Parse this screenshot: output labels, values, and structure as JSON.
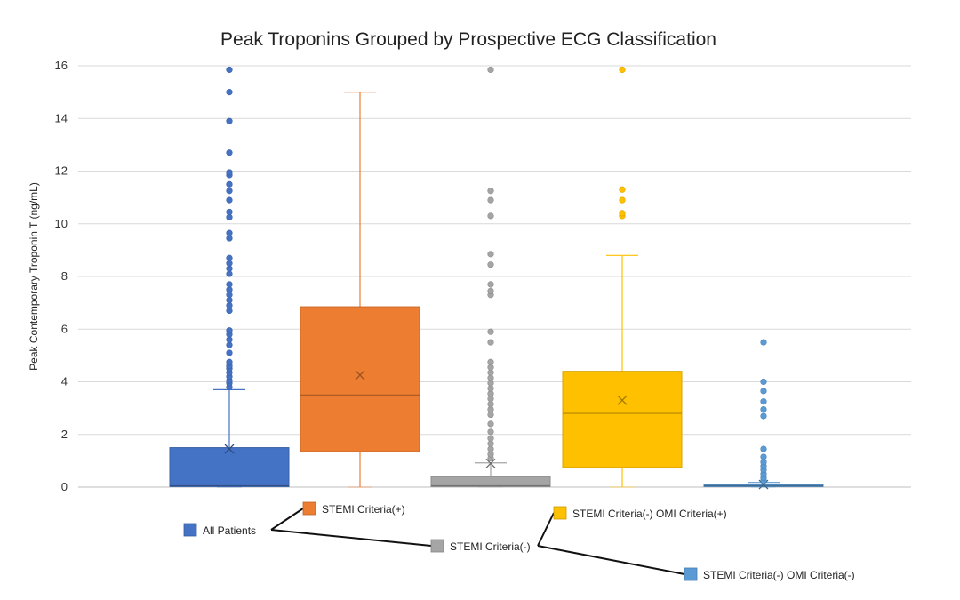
{
  "chart_data": {
    "type": "box",
    "title": "Peak Troponins Grouped by Prospective ECG Classification",
    "ylabel": "Peak Contemporary Troponin T (ng/mL)",
    "xlabel": "",
    "ylim": [
      0,
      16
    ],
    "yticks": [
      0,
      2,
      4,
      6,
      8,
      10,
      12,
      14,
      16
    ],
    "grid": true,
    "legend_position": "bottom",
    "series": [
      {
        "name": "All Patients",
        "color": "#4472C4",
        "min": 0.0,
        "q1": 0.02,
        "median": 0.05,
        "q3": 1.5,
        "max": 3.7,
        "mean": 1.45,
        "outliers": [
          3.8,
          3.95,
          4.05,
          4.2,
          4.35,
          4.5,
          4.6,
          4.75,
          5.1,
          5.4,
          5.6,
          5.8,
          5.95,
          6.7,
          6.9,
          7.1,
          7.3,
          7.5,
          7.7,
          8.1,
          8.3,
          8.5,
          8.7,
          9.45,
          9.65,
          10.25,
          10.45,
          10.9,
          11.25,
          11.5,
          11.85,
          11.95,
          12.7,
          13.9,
          15.0,
          15.85
        ]
      },
      {
        "name": "STEMI Criteria(+)",
        "color": "#ED7D31",
        "min": 0.0,
        "q1": 1.35,
        "median": 3.5,
        "q3": 6.85,
        "max": 15.0,
        "mean": 4.25,
        "outliers": []
      },
      {
        "name": "STEMI Criteria(-)",
        "color": "#A5A5A5",
        "min": 0.0,
        "q1": 0.02,
        "median": 0.05,
        "q3": 0.4,
        "max": 0.92,
        "mean": 0.9,
        "outliers": [
          1.1,
          1.25,
          1.45,
          1.65,
          1.85,
          2.1,
          2.4,
          2.75,
          2.95,
          3.15,
          3.35,
          3.55,
          3.75,
          3.95,
          4.15,
          4.35,
          4.55,
          4.75,
          5.5,
          5.9,
          7.3,
          7.45,
          7.7,
          8.45,
          8.85,
          10.3,
          10.9,
          11.25,
          15.85
        ]
      },
      {
        "name": "STEMI Criteria(-) OMI Criteria(+)",
        "color": "#FFC000",
        "min": 0.0,
        "q1": 0.75,
        "median": 2.8,
        "q3": 4.4,
        "max": 8.8,
        "mean": 3.3,
        "outliers": [
          10.3,
          10.4,
          10.9,
          11.3,
          15.85
        ]
      },
      {
        "name": "STEMI Criteria(-) OMI Criteria(-)",
        "color": "#5B9BD5",
        "min": 0.0,
        "q1": 0.02,
        "median": 0.05,
        "q3": 0.1,
        "max": 0.18,
        "mean": 0.1,
        "outliers": [
          0.25,
          0.35,
          0.5,
          0.65,
          0.8,
          0.95,
          1.15,
          1.45,
          2.7,
          2.95,
          3.25,
          3.65,
          4.0,
          5.5
        ]
      }
    ]
  }
}
